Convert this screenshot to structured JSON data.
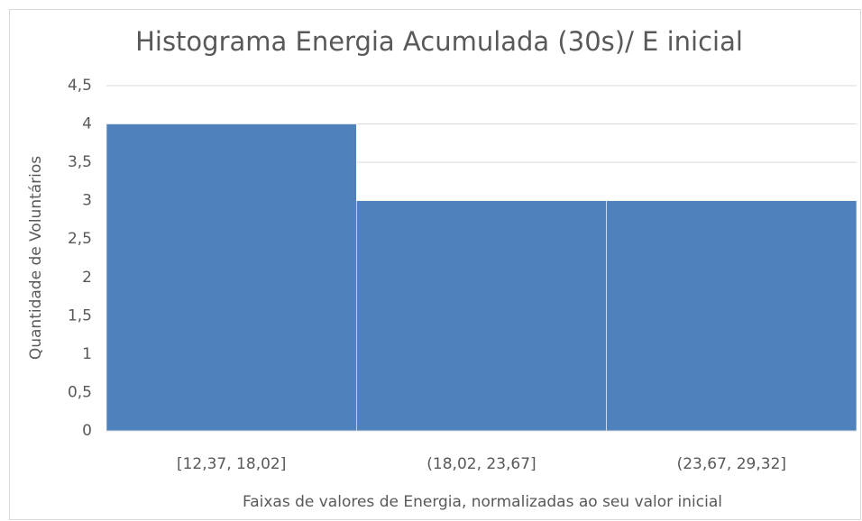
{
  "chart_data": {
    "type": "bar",
    "title": "Histograma Energia Acumulada (30s)/ E inicial",
    "x_label": "Faixas de valores de Energia, normalizadas ao seu valor inicial",
    "y_label": "Quantidade de Voluntários",
    "categories": [
      "[12,37, 18,02]",
      "(18,02, 23,67]",
      "(23,67, 29,32]"
    ],
    "values": [
      4,
      3,
      3
    ],
    "color": "#4f81bd",
    "ylim": [
      0,
      4.5
    ],
    "yticks": [
      0,
      {
        "value": 0.5,
        "label": "0,5"
      },
      1,
      {
        "value": 1.5,
        "label": "1,5"
      },
      2,
      {
        "value": 2.5,
        "label": "2,5"
      },
      3,
      {
        "value": 3.5,
        "label": "3,5"
      },
      4,
      {
        "value": 4.5,
        "label": "4,5"
      }
    ],
    "grid": true
  }
}
